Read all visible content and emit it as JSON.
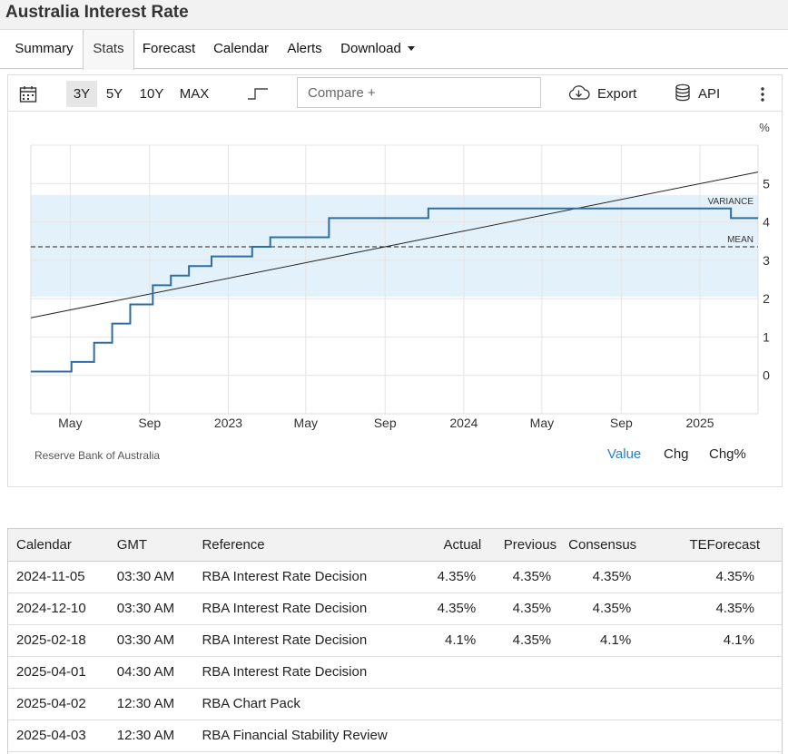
{
  "page": {
    "title": "Australia Interest Rate"
  },
  "tabs": [
    {
      "label": "Summary"
    },
    {
      "label": "Stats"
    },
    {
      "label": "Forecast"
    },
    {
      "label": "Calendar"
    },
    {
      "label": "Alerts"
    },
    {
      "label": "Download"
    }
  ],
  "toolbar": {
    "ranges": [
      "3Y",
      "5Y",
      "10Y",
      "MAX"
    ],
    "active_range": "3Y",
    "compare_placeholder": "Compare +",
    "export_label": "Export",
    "api_label": "API",
    "icons": [
      "calendar-icon",
      "step-chart-icon",
      "cloud-download-icon",
      "database-icon",
      "more-vertical-icon"
    ]
  },
  "chart": {
    "source": "Reserve Bank of Australia",
    "unit_label": "%",
    "variance_label": "VARIANCE",
    "mean_label": "MEAN",
    "toggles": [
      "Value",
      "Chg",
      "Chg%"
    ],
    "active_toggle": "Value",
    "line_color": "#2e6da4",
    "band_color": "#e3f2fa"
  },
  "chart_data": {
    "type": "line",
    "ylabel": "%",
    "ylim": [
      -1,
      6
    ],
    "yticks": [
      "0",
      "1",
      "2",
      "3",
      "4",
      "5"
    ],
    "xticks": [
      "May",
      "Sep",
      "2023",
      "May",
      "Sep",
      "2024",
      "May",
      "Sep",
      "2025"
    ],
    "x_tick_dates": [
      "2022-05-01",
      "2022-09-01",
      "2023-01-01",
      "2023-05-01",
      "2023-09-01",
      "2024-01-01",
      "2024-05-01",
      "2024-09-01",
      "2025-01-01"
    ],
    "x_range": [
      "2022-03-01",
      "2025-04-01"
    ],
    "series": [
      {
        "name": "",
        "x": [
          "2022-03-01",
          "2022-05-03",
          "2022-06-07",
          "2022-07-05",
          "2022-08-02",
          "2022-09-06",
          "2022-10-04",
          "2022-11-01",
          "2022-12-06",
          "2023-02-07",
          "2023-03-07",
          "2023-06-06",
          "2023-11-07",
          "2025-02-18",
          "2025-04-01"
        ],
        "values": [
          0.1,
          0.35,
          0.85,
          1.35,
          1.85,
          2.35,
          2.6,
          2.85,
          3.1,
          3.35,
          3.6,
          4.1,
          4.35,
          4.1,
          4.1
        ]
      }
    ],
    "mean": 3.35,
    "variance_band": [
      2.05,
      4.7
    ],
    "trend_line": {
      "start": 1.5,
      "end": 5.3
    }
  },
  "table": {
    "headers": [
      "Calendar",
      "GMT",
      "Reference",
      "Actual",
      "Previous",
      "Consensus",
      "TEForecast"
    ],
    "rows": [
      [
        "2024-11-05",
        "03:30 AM",
        "RBA Interest Rate Decision",
        "4.35%",
        "4.35%",
        "4.35%",
        "4.35%"
      ],
      [
        "2024-12-10",
        "03:30 AM",
        "RBA Interest Rate Decision",
        "4.35%",
        "4.35%",
        "4.35%",
        "4.35%"
      ],
      [
        "2025-02-18",
        "03:30 AM",
        "RBA Interest Rate Decision",
        "4.1%",
        "4.35%",
        "4.1%",
        "4.1%"
      ],
      [
        "2025-04-01",
        "04:30 AM",
        "RBA Interest Rate Decision",
        "",
        "",
        "",
        ""
      ],
      [
        "2025-04-02",
        "12:30 AM",
        "RBA Chart Pack",
        "",
        "",
        "",
        ""
      ],
      [
        "2025-04-03",
        "12:30 AM",
        "RBA Financial Stability Review",
        "",
        "",
        "",
        ""
      ]
    ]
  }
}
